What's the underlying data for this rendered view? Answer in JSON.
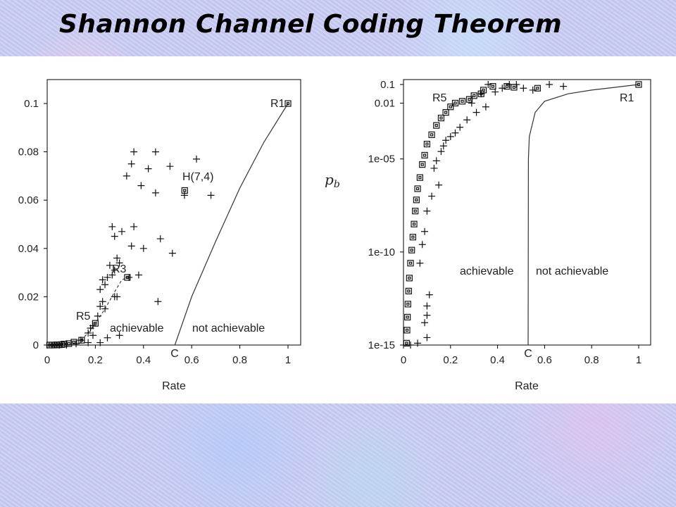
{
  "title": "Shannon Channel Coding Theorem",
  "chart_data": [
    {
      "type": "scatter",
      "xlabel": "Rate",
      "ylabel": "",
      "xlim": [
        0,
        1.05
      ],
      "ylim": [
        0,
        0.1
      ],
      "x_ticks": [
        "0",
        "0.2",
        "0.4",
        "0.6",
        "0.8",
        "1"
      ],
      "y_ticks": [
        "0",
        "0.02",
        "0.04",
        "0.06",
        "0.08",
        "0.1"
      ],
      "annotations": [
        "R1",
        "H(7,4)",
        "R3",
        "R5",
        "achievable",
        "not achievable",
        "C"
      ],
      "capacity": 0.53,
      "series": [
        {
          "marker": "square",
          "points": [
            [
              1.0,
              0.1
            ],
            [
              0.571,
              0.064
            ],
            [
              0.333,
              0.028
            ],
            [
              0.2,
              0.009
            ],
            [
              0.143,
              0.002
            ],
            [
              0.111,
              0.0012
            ],
            [
              0.09,
              0.0006
            ],
            [
              0.07,
              0.0004
            ],
            [
              0.06,
              0.0002
            ],
            [
              0.05,
              0.0001
            ],
            [
              0.04,
              0.0001
            ],
            [
              0.03,
              0.0
            ],
            [
              0.02,
              0.0
            ],
            [
              0.01,
              0.0
            ]
          ]
        },
        {
          "marker": "plus",
          "points": [
            [
              0.36,
              0.08
            ],
            [
              0.45,
              0.08
            ],
            [
              0.35,
              0.075
            ],
            [
              0.42,
              0.073
            ],
            [
              0.51,
              0.074
            ],
            [
              0.62,
              0.077
            ],
            [
              0.33,
              0.07
            ],
            [
              0.39,
              0.066
            ],
            [
              0.45,
              0.063
            ],
            [
              0.57,
              0.062
            ],
            [
              0.68,
              0.062
            ],
            [
              0.27,
              0.049
            ],
            [
              0.36,
              0.049
            ],
            [
              0.31,
              0.047
            ],
            [
              0.28,
              0.045
            ],
            [
              0.47,
              0.044
            ],
            [
              0.35,
              0.041
            ],
            [
              0.4,
              0.04
            ],
            [
              0.52,
              0.038
            ],
            [
              0.29,
              0.036
            ],
            [
              0.3,
              0.034
            ],
            [
              0.26,
              0.033
            ],
            [
              0.28,
              0.031
            ],
            [
              0.27,
              0.029
            ],
            [
              0.34,
              0.028
            ],
            [
              0.38,
              0.029
            ],
            [
              0.25,
              0.028
            ],
            [
              0.23,
              0.027
            ],
            [
              0.24,
              0.025
            ],
            [
              0.22,
              0.023
            ],
            [
              0.29,
              0.02
            ],
            [
              0.28,
              0.02
            ],
            [
              0.23,
              0.018
            ],
            [
              0.46,
              0.018
            ],
            [
              0.22,
              0.016
            ],
            [
              0.24,
              0.015
            ],
            [
              0.21,
              0.012
            ],
            [
              0.19,
              0.008
            ],
            [
              0.18,
              0.007
            ],
            [
              0.17,
              0.005
            ],
            [
              0.19,
              0.004
            ],
            [
              0.3,
              0.004
            ],
            [
              0.25,
              0.003
            ],
            [
              0.14,
              0.002
            ],
            [
              0.22,
              0.001
            ],
            [
              0.17,
              0.001
            ],
            [
              0.12,
              0.0005
            ],
            [
              0.08,
              0.0
            ],
            [
              0.05,
              0.0
            ]
          ]
        }
      ],
      "bound_curve": [
        [
          0.53,
          0.0
        ],
        [
          0.6,
          0.02
        ],
        [
          0.7,
          0.043
        ],
        [
          0.8,
          0.065
        ],
        [
          0.9,
          0.084
        ],
        [
          1.0,
          0.1
        ]
      ],
      "dashed_curve": [
        [
          0.14,
          0.002
        ],
        [
          0.17,
          0.005
        ],
        [
          0.2,
          0.009
        ],
        [
          0.24,
          0.015
        ],
        [
          0.28,
          0.022
        ],
        [
          0.31,
          0.027
        ],
        [
          0.333,
          0.028
        ]
      ]
    },
    {
      "type": "scatter",
      "xlabel": "Rate",
      "ylabel": "p_b",
      "xlim": [
        0,
        1.0
      ],
      "ylim_log10": [
        -15,
        -1
      ],
      "log_scale_y": true,
      "x_ticks": [
        "0",
        "0.2",
        "0.4",
        "0.6",
        "0.8",
        "1"
      ],
      "y_ticks": [
        "0.1",
        "0.01",
        "1e-05",
        "1e-10",
        "1e-15"
      ],
      "annotations": [
        "R5",
        "R1",
        "achievable",
        "not achievable",
        "C"
      ],
      "capacity": 0.53,
      "series": [
        {
          "marker": "square",
          "log10_points": [
            [
              1.0,
              -1
            ],
            [
              0.57,
              -1.2
            ],
            [
              0.34,
              -1.3
            ],
            [
              0.33,
              -1.5
            ],
            [
              0.3,
              -1.6
            ],
            [
              0.28,
              -1.8
            ],
            [
              0.25,
              -1.9
            ],
            [
              0.22,
              -2.0
            ],
            [
              0.2,
              -2.2
            ],
            [
              0.18,
              -2.5
            ],
            [
              0.16,
              -2.8
            ],
            [
              0.14,
              -3.2
            ],
            [
              0.12,
              -3.7
            ],
            [
              0.1,
              -4.2
            ],
            [
              0.09,
              -4.8
            ],
            [
              0.08,
              -5.3
            ],
            [
              0.07,
              -6
            ],
            [
              0.06,
              -6.6
            ],
            [
              0.055,
              -7.2
            ],
            [
              0.05,
              -7.8
            ],
            [
              0.045,
              -8.5
            ],
            [
              0.04,
              -9.2
            ],
            [
              0.035,
              -9.9
            ],
            [
              0.03,
              -10.6
            ],
            [
              0.025,
              -11.4
            ],
            [
              0.022,
              -12.1
            ],
            [
              0.019,
              -12.8
            ],
            [
              0.017,
              -13.5
            ],
            [
              0.015,
              -14.2
            ],
            [
              0.013,
              -14.9
            ],
            [
              0.38,
              -1.1
            ],
            [
              0.44,
              -1.1
            ],
            [
              0.47,
              -1.15
            ]
          ]
        },
        {
          "marker": "plus",
          "log10_points": [
            [
              0.36,
              -1.0
            ],
            [
              0.45,
              -1.0
            ],
            [
              0.48,
              -1.0
            ],
            [
              0.62,
              -1.0
            ],
            [
              0.68,
              -1.1
            ],
            [
              0.51,
              -1.2
            ],
            [
              0.42,
              -1.2
            ],
            [
              0.55,
              -1.3
            ],
            [
              0.39,
              -1.4
            ],
            [
              0.33,
              -1.5
            ],
            [
              0.29,
              -2.0
            ],
            [
              0.35,
              -2.2
            ],
            [
              0.31,
              -2.5
            ],
            [
              0.27,
              -2.9
            ],
            [
              0.24,
              -3.3
            ],
            [
              0.22,
              -3.6
            ],
            [
              0.2,
              -3.8
            ],
            [
              0.18,
              -4.0
            ],
            [
              0.17,
              -4.3
            ],
            [
              0.16,
              -4.6
            ],
            [
              0.14,
              -5.1
            ],
            [
              0.13,
              -5.5
            ],
            [
              0.15,
              -6.4
            ],
            [
              0.12,
              -7.0
            ],
            [
              0.1,
              -7.8
            ],
            [
              0.09,
              -8.9
            ],
            [
              0.08,
              -9.6
            ],
            [
              0.07,
              -10.6
            ],
            [
              0.11,
              -12.3
            ],
            [
              0.1,
              -12.9
            ],
            [
              0.1,
              -13.4
            ],
            [
              0.09,
              -13.8
            ],
            [
              0.1,
              -14.6
            ],
            [
              0.06,
              -14.9
            ],
            [
              0.03,
              -15.0
            ]
          ]
        }
      ],
      "bound_curve_log10": [
        [
          0.53,
          -15
        ],
        [
          0.531,
          -5
        ],
        [
          0.535,
          -3.8
        ],
        [
          0.56,
          -2.5
        ],
        [
          0.6,
          -1.9
        ],
        [
          0.7,
          -1.5
        ],
        [
          0.8,
          -1.3
        ],
        [
          0.9,
          -1.15
        ],
        [
          1.0,
          -1
        ]
      ]
    }
  ]
}
